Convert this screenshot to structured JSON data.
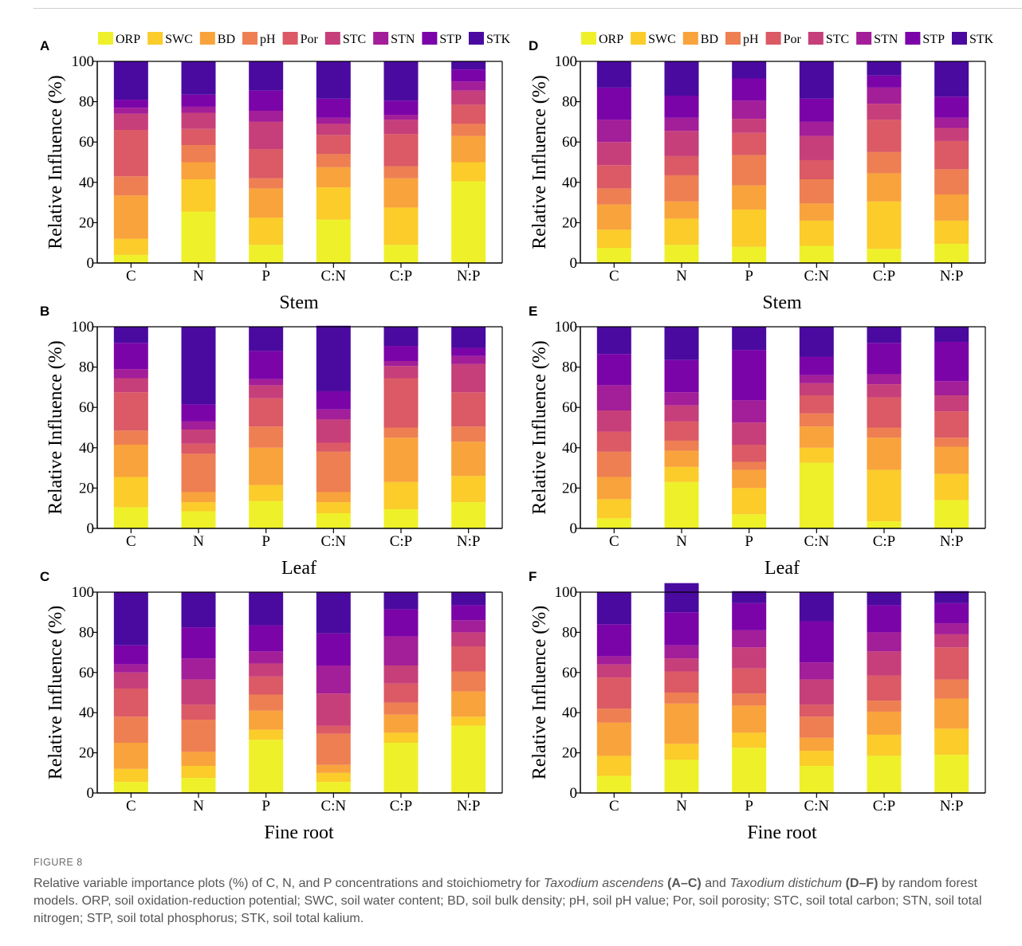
{
  "figure_label": "FIGURE 8",
  "caption": {
    "p1": "Relative variable importance plots (%) of C, N, and P concentrations and stoichiometry for ",
    "species_a": "Taxodium ascendens",
    "panels_a": "(A–C)",
    "p2": " and ",
    "species_b": "Taxodium distichum",
    "panels_b": "(D–F)",
    "p3": " by random forest models. ORP, soil oxidation-reduction potential; SWC, soil water content; BD, soil bulk density; pH, soil pH value; Por, soil porosity; STC, soil total carbon; STN, soil total nitrogen; STP, soil total phosphorus; STK, soil total kalium."
  },
  "legend": [
    "ORP",
    "SWC",
    "BD",
    "pH",
    "Por",
    "STC",
    "STN",
    "STP",
    "STK"
  ],
  "colors": [
    "#EEF12A",
    "#FBCC2A",
    "#F9A33C",
    "#EE7F52",
    "#DB5A65",
    "#C63F7B",
    "#A31E99",
    "#7B04A8",
    "#4A0A9F"
  ],
  "chart_data": [
    {
      "type": "bar",
      "stacked": true,
      "panel": "A",
      "xlabel": "Stem",
      "ylabel": "Relative Influence (%)",
      "ylim": [
        0,
        100
      ],
      "categories": [
        "C",
        "N",
        "P",
        "C:N",
        "C:P",
        "N:P"
      ],
      "series": [
        {
          "name": "ORP",
          "values": [
            4,
            25.5,
            9,
            21.5,
            9,
            40.5
          ]
        },
        {
          "name": "SWC",
          "values": [
            8,
            16,
            13.5,
            16,
            18.5,
            9.5
          ]
        },
        {
          "name": "BD",
          "values": [
            21.5,
            8.5,
            14.5,
            10,
            14.5,
            13
          ]
        },
        {
          "name": "pH",
          "values": [
            9.5,
            8.5,
            5,
            6.5,
            6,
            6
          ]
        },
        {
          "name": "Por",
          "values": [
            23,
            8,
            14.5,
            9.5,
            16,
            9.5
          ]
        },
        {
          "name": "STC",
          "values": [
            8,
            8,
            13.5,
            5.5,
            7,
            7
          ]
        },
        {
          "name": "STN",
          "values": [
            3,
            3,
            5.5,
            3,
            2.5,
            4.5
          ]
        },
        {
          "name": "STP",
          "values": [
            4,
            6,
            10,
            9.5,
            7,
            6
          ]
        },
        {
          "name": "STK",
          "values": [
            19,
            16.5,
            14.5,
            18.5,
            19.5,
            4
          ]
        }
      ]
    },
    {
      "type": "bar",
      "stacked": true,
      "panel": "B",
      "xlabel": "Leaf",
      "ylabel": "Relative Influence (%)",
      "ylim": [
        0,
        100
      ],
      "categories": [
        "C",
        "N",
        "P",
        "C:N",
        "C:P",
        "N:P"
      ],
      "series": [
        {
          "name": "ORP",
          "values": [
            10.5,
            8.5,
            13.5,
            7.5,
            9.5,
            13
          ]
        },
        {
          "name": "SWC",
          "values": [
            15,
            4.5,
            8,
            5.5,
            13.5,
            13
          ]
        },
        {
          "name": "BD",
          "values": [
            16,
            5,
            18.5,
            5,
            22,
            17
          ]
        },
        {
          "name": "pH",
          "values": [
            7,
            19,
            10.5,
            20,
            5,
            7.5
          ]
        },
        {
          "name": "Por",
          "values": [
            19,
            5,
            14,
            4.5,
            24.5,
            17
          ]
        },
        {
          "name": "STC",
          "values": [
            7,
            7,
            6.5,
            11.5,
            6,
            14
          ]
        },
        {
          "name": "STN",
          "values": [
            4.5,
            4,
            3,
            5,
            2.5,
            4
          ]
        },
        {
          "name": "STP",
          "values": [
            13,
            8.5,
            14,
            9,
            7.5,
            4
          ]
        },
        {
          "name": "STK",
          "values": [
            8,
            38.5,
            12,
            32.5,
            9.5,
            10.5
          ]
        }
      ]
    },
    {
      "type": "bar",
      "stacked": true,
      "panel": "C",
      "xlabel": "Fine root",
      "ylabel": "Relative Influence (%)",
      "ylim": [
        0,
        100
      ],
      "categories": [
        "C",
        "N",
        "P",
        "C:N",
        "C:P",
        "N:P"
      ],
      "series": [
        {
          "name": "ORP",
          "values": [
            5.5,
            7.5,
            26.5,
            5.5,
            25,
            33.5
          ]
        },
        {
          "name": "SWC",
          "values": [
            6.5,
            6,
            5,
            4.5,
            5,
            4.5
          ]
        },
        {
          "name": "BD",
          "values": [
            13,
            7,
            9.5,
            4,
            9,
            12.5
          ]
        },
        {
          "name": "pH",
          "values": [
            13,
            16,
            8,
            15.5,
            6,
            10
          ]
        },
        {
          "name": "Por",
          "values": [
            14,
            7.5,
            9,
            4,
            9.5,
            12.5
          ]
        },
        {
          "name": "STC",
          "values": [
            8,
            12.5,
            6.5,
            16,
            9,
            7
          ]
        },
        {
          "name": "STN",
          "values": [
            4,
            10.5,
            6,
            14,
            14.5,
            6
          ]
        },
        {
          "name": "STP",
          "values": [
            9.5,
            15.5,
            13,
            16,
            13.5,
            7.5
          ]
        },
        {
          "name": "STK",
          "values": [
            26.5,
            17.5,
            16.5,
            20.5,
            8.5,
            6.5
          ]
        }
      ]
    },
    {
      "type": "bar",
      "stacked": true,
      "panel": "D",
      "xlabel": "Stem",
      "ylabel": "Relative Influence (%)",
      "ylim": [
        0,
        100
      ],
      "categories": [
        "C",
        "N",
        "P",
        "C:N",
        "C:P",
        "N:P"
      ],
      "series": [
        {
          "name": "ORP",
          "values": [
            7.5,
            9,
            8,
            8.5,
            7,
            9.5
          ]
        },
        {
          "name": "SWC",
          "values": [
            9,
            13,
            18.5,
            12.5,
            23.5,
            11.5
          ]
        },
        {
          "name": "BD",
          "values": [
            12.5,
            8.5,
            12,
            8.5,
            14,
            13
          ]
        },
        {
          "name": "pH",
          "values": [
            8,
            13,
            15,
            12,
            10.5,
            12.5
          ]
        },
        {
          "name": "Por",
          "values": [
            11.5,
            9.5,
            11,
            9.5,
            16,
            14
          ]
        },
        {
          "name": "STC",
          "values": [
            11.5,
            12.5,
            7,
            12,
            8,
            6.5
          ]
        },
        {
          "name": "STN",
          "values": [
            11,
            6.5,
            9,
            7,
            8,
            5
          ]
        },
        {
          "name": "STP",
          "values": [
            16,
            11,
            11,
            11.5,
            6,
            10.5
          ]
        },
        {
          "name": "STK",
          "values": [
            13,
            17,
            8.5,
            18.5,
            7,
            17.5
          ]
        }
      ]
    },
    {
      "type": "bar",
      "stacked": true,
      "panel": "E",
      "xlabel": "Leaf",
      "ylabel": "Relative Influence (%)",
      "ylim": [
        0,
        100
      ],
      "categories": [
        "C",
        "N",
        "P",
        "C:N",
        "C:P",
        "N:P"
      ],
      "series": [
        {
          "name": "ORP",
          "values": [
            5,
            23,
            7,
            32.5,
            3.5,
            14
          ]
        },
        {
          "name": "SWC",
          "values": [
            9.5,
            7.5,
            13,
            7.5,
            25.5,
            13
          ]
        },
        {
          "name": "BD",
          "values": [
            11,
            8,
            9,
            10.5,
            16,
            13.5
          ]
        },
        {
          "name": "pH",
          "values": [
            12.5,
            5,
            4,
            6.5,
            5,
            4.5
          ]
        },
        {
          "name": "Por",
          "values": [
            10,
            9.5,
            8.5,
            9,
            15,
            13
          ]
        },
        {
          "name": "STC",
          "values": [
            10.5,
            8,
            11,
            6,
            6.5,
            8
          ]
        },
        {
          "name": "STN",
          "values": [
            12.5,
            6.5,
            11,
            4,
            5,
            7
          ]
        },
        {
          "name": "STP",
          "values": [
            15.5,
            16,
            25,
            9,
            15.5,
            19.5
          ]
        },
        {
          "name": "STK",
          "values": [
            13.5,
            16.5,
            11.5,
            15,
            8,
            7.5
          ]
        }
      ]
    },
    {
      "type": "bar",
      "stacked": true,
      "panel": "F",
      "xlabel": "Fine root",
      "ylabel": "Relative Influence (%)",
      "ylim": [
        0,
        100
      ],
      "categories": [
        "C",
        "N",
        "P",
        "C:N",
        "C:P",
        "N:P"
      ],
      "series": [
        {
          "name": "ORP",
          "values": [
            8.5,
            16.5,
            22.5,
            13.5,
            18.5,
            19
          ]
        },
        {
          "name": "SWC",
          "values": [
            10,
            8,
            7.5,
            7.5,
            10.5,
            13
          ]
        },
        {
          "name": "BD",
          "values": [
            16.5,
            20,
            13.5,
            6.5,
            11.5,
            15
          ]
        },
        {
          "name": "pH",
          "values": [
            7,
            5.5,
            6,
            10.5,
            5.5,
            9.5
          ]
        },
        {
          "name": "Por",
          "values": [
            15.5,
            10.5,
            12.5,
            6,
            12.5,
            16
          ]
        },
        {
          "name": "STC",
          "values": [
            6.5,
            6.5,
            10.5,
            12.5,
            12,
            6.5
          ]
        },
        {
          "name": "STN",
          "values": [
            4,
            6.5,
            8.5,
            8.5,
            9.5,
            5.5
          ]
        },
        {
          "name": "STP",
          "values": [
            16,
            16.5,
            13.5,
            20.5,
            13.5,
            10
          ]
        },
        {
          "name": "STK",
          "values": [
            16,
            14.5,
            6,
            14.5,
            6.5,
            6
          ]
        }
      ]
    }
  ]
}
